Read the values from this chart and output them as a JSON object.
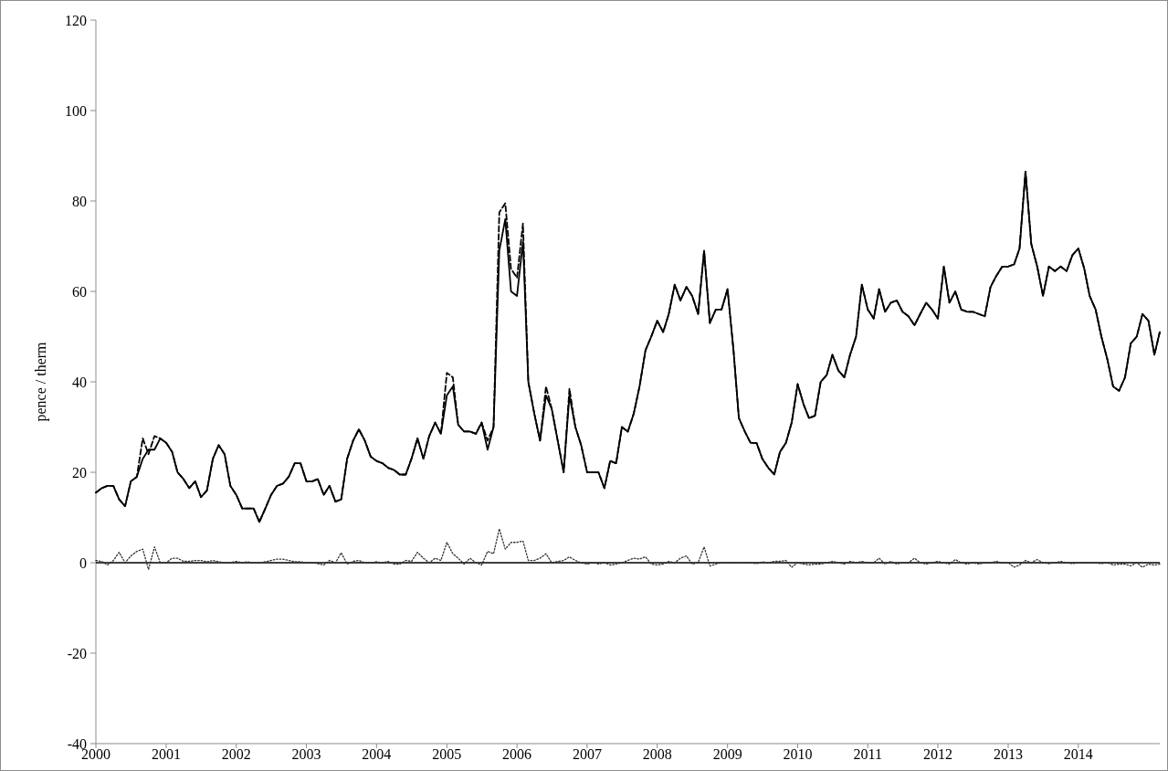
{
  "chart_data": {
    "type": "line",
    "ylabel": "pence / therm",
    "x": [
      "2000-01",
      "2000-02",
      "2000-03",
      "2000-04",
      "2000-05",
      "2000-06",
      "2000-07",
      "2000-08",
      "2000-09",
      "2000-10",
      "2000-11",
      "2000-12",
      "2001-01",
      "2001-02",
      "2001-03",
      "2001-04",
      "2001-05",
      "2001-06",
      "2001-07",
      "2001-08",
      "2001-09",
      "2001-10",
      "2001-11",
      "2001-12",
      "2002-01",
      "2002-02",
      "2002-03",
      "2002-04",
      "2002-05",
      "2002-06",
      "2002-07",
      "2002-08",
      "2002-09",
      "2002-10",
      "2002-11",
      "2002-12",
      "2003-01",
      "2003-02",
      "2003-03",
      "2003-04",
      "2003-05",
      "2003-06",
      "2003-07",
      "2003-08",
      "2003-09",
      "2003-10",
      "2003-11",
      "2003-12",
      "2004-01",
      "2004-02",
      "2004-03",
      "2004-04",
      "2004-05",
      "2004-06",
      "2004-07",
      "2004-08",
      "2004-09",
      "2004-10",
      "2004-11",
      "2004-12",
      "2005-01",
      "2005-02",
      "2005-03",
      "2005-04",
      "2005-05",
      "2005-06",
      "2005-07",
      "2005-08",
      "2005-09",
      "2005-10",
      "2005-11",
      "2005-12",
      "2006-01",
      "2006-02",
      "2006-03",
      "2006-04",
      "2006-05",
      "2006-06",
      "2006-07",
      "2006-08",
      "2006-09",
      "2006-10",
      "2006-11",
      "2006-12",
      "2007-01",
      "2007-02",
      "2007-03",
      "2007-04",
      "2007-05",
      "2007-06",
      "2007-07",
      "2007-08",
      "2007-09",
      "2007-10",
      "2007-11",
      "2007-12",
      "2008-01",
      "2008-02",
      "2008-03",
      "2008-04",
      "2008-05",
      "2008-06",
      "2008-07",
      "2008-08",
      "2008-09",
      "2008-10",
      "2008-11",
      "2008-12",
      "2009-01",
      "2009-02",
      "2009-03",
      "2009-04",
      "2009-05",
      "2009-06",
      "2009-07",
      "2009-08",
      "2009-09",
      "2009-10",
      "2009-11",
      "2009-12",
      "2010-01",
      "2010-02",
      "2010-03",
      "2010-04",
      "2010-05",
      "2010-06",
      "2010-07",
      "2010-08",
      "2010-09",
      "2010-10",
      "2010-11",
      "2010-12",
      "2011-01",
      "2011-02",
      "2011-03",
      "2011-04",
      "2011-05",
      "2011-06",
      "2011-07",
      "2011-08",
      "2011-09",
      "2011-10",
      "2011-11",
      "2011-12",
      "2012-01",
      "2012-02",
      "2012-03",
      "2012-04",
      "2012-05",
      "2012-06",
      "2012-07",
      "2012-08",
      "2012-09",
      "2012-10",
      "2012-11",
      "2012-12",
      "2013-01",
      "2013-02",
      "2013-03",
      "2013-04",
      "2013-05",
      "2013-06",
      "2013-07",
      "2013-08",
      "2013-09",
      "2013-10",
      "2013-11",
      "2013-12",
      "2014-01",
      "2014-02",
      "2014-03",
      "2014-04",
      "2014-05",
      "2014-06",
      "2014-07",
      "2014-08",
      "2014-09",
      "2014-10",
      "2014-11",
      "2014-12",
      "2015-01",
      "2015-02",
      "2015-03"
    ],
    "series": [
      {
        "color": "#000000",
        "line_style": "dashed",
        "values": [
          15.5,
          16.5,
          17,
          17,
          14,
          12.5,
          18,
          19,
          27.5,
          24,
          28,
          27.5,
          26.5,
          24.5,
          20,
          18.5,
          16.5,
          18,
          14.5,
          16,
          23,
          26,
          24,
          17,
          15,
          12,
          12,
          12,
          9,
          12,
          15,
          17,
          17.5,
          19,
          22,
          22,
          18,
          18,
          18.5,
          15,
          17,
          13.5,
          14,
          23,
          27,
          29.5,
          27,
          23.5,
          22.5,
          22,
          21,
          20.5,
          19.5,
          19.5,
          23,
          27.5,
          23,
          28,
          31,
          28.5,
          42,
          41,
          30.5,
          29,
          29,
          28.5,
          31,
          27,
          30,
          77.5,
          79.5,
          65,
          63,
          75,
          40,
          33,
          27,
          39,
          34,
          27,
          20,
          38.5,
          30,
          26,
          20,
          20,
          20,
          16.5,
          22.5,
          22,
          30,
          29,
          33,
          39,
          47,
          50,
          53.5,
          51,
          55,
          61.5,
          58,
          61,
          59,
          55,
          69,
          53,
          56,
          56,
          60.5,
          47,
          32,
          29,
          26.5,
          26.5,
          23,
          21,
          19.5,
          24.5,
          26.5,
          31,
          39.5,
          35,
          32,
          32.5,
          40,
          41.5,
          46,
          42.5,
          41,
          46,
          50,
          61.5,
          56,
          54,
          60.5,
          55.5,
          57.5,
          58,
          55.5,
          54.5,
          52.5,
          55,
          57.5,
          56,
          54,
          65.5,
          57.5,
          60,
          56,
          55.5,
          55.5,
          55,
          54.5,
          61,
          63.5,
          65.5,
          65.5,
          66,
          69.5,
          86.5,
          70.5,
          65.5,
          59,
          65.5,
          64.5,
          65.5,
          64.5,
          68,
          69.5,
          65,
          59,
          56,
          50,
          45,
          39,
          38,
          41,
          48.5,
          50,
          55,
          53.5,
          46,
          51
        ]
      },
      {
        "color": "#000000",
        "line_style": "solid",
        "values": [
          15.5,
          16.5,
          17,
          17,
          14,
          12.5,
          18,
          19,
          23,
          25,
          25,
          27.5,
          26.5,
          24.5,
          20,
          18.5,
          16.5,
          18,
          14.5,
          16,
          23,
          26,
          24,
          17,
          15,
          12,
          12,
          12,
          9,
          12,
          15,
          17,
          17.5,
          19,
          22,
          22,
          18,
          18,
          18.5,
          15,
          17,
          13.5,
          14,
          23,
          27,
          29.5,
          27,
          23.5,
          22.5,
          22,
          21,
          20.5,
          19.5,
          19.5,
          23,
          27.5,
          23,
          28,
          31,
          28.5,
          37,
          39,
          30.5,
          29,
          29,
          28.5,
          31,
          25,
          30,
          69,
          76,
          60,
          59,
          71,
          40,
          33,
          27,
          37,
          34,
          27,
          20,
          37,
          30,
          26,
          20,
          20,
          20,
          16.5,
          22.5,
          22,
          30,
          29,
          33,
          39,
          47,
          50,
          53.5,
          51,
          55,
          61.5,
          58,
          61,
          59,
          55,
          69,
          53,
          56,
          56,
          60.5,
          47,
          32,
          29,
          26.5,
          26.5,
          23,
          21,
          19.5,
          24.5,
          26.5,
          31,
          39.5,
          35,
          32,
          32.5,
          40,
          41.5,
          46,
          42.5,
          41,
          46,
          50,
          61.5,
          56,
          54,
          60.5,
          55.5,
          57.5,
          58,
          55.5,
          54.5,
          52.5,
          55,
          57.5,
          56,
          54,
          65.5,
          57.5,
          60,
          56,
          55.5,
          55.5,
          55,
          54.5,
          61,
          63.5,
          65.5,
          65.5,
          66,
          69.5,
          86.5,
          70.5,
          65.5,
          59,
          65.5,
          64.5,
          65.5,
          64.5,
          68,
          69.5,
          65,
          59,
          56,
          50,
          45,
          39,
          38,
          41,
          48.5,
          50,
          55,
          53.5,
          46,
          51
        ]
      },
      {
        "color": "#333333",
        "line_style": "dotted",
        "values": [
          0.5,
          0.3,
          -0.5,
          0.5,
          2.3,
          0,
          1.5,
          2.5,
          3,
          -1.5,
          3.5,
          0,
          0,
          1,
          1,
          0.3,
          0.3,
          0.5,
          0.5,
          0.2,
          0.5,
          0.2,
          0,
          0,
          0.3,
          0,
          0.2,
          0,
          0,
          0.2,
          0.5,
          0.8,
          0.8,
          0.5,
          0.2,
          0.2,
          0,
          0,
          -0.2,
          -0.5,
          0.5,
          0,
          2.2,
          -0.3,
          0.3,
          0.5,
          0,
          0,
          0.2,
          0,
          0.3,
          -0.3,
          -0.3,
          0.5,
          0.3,
          2.3,
          1,
          0,
          1,
          0.5,
          4.5,
          2,
          1,
          -0.3,
          1,
          0,
          -0.5,
          2.5,
          2,
          7.5,
          3,
          4.5,
          4.5,
          4.8,
          0.5,
          0.5,
          1,
          2,
          0,
          0.3,
          0.5,
          1.3,
          0.5,
          0,
          -0.3,
          0,
          -0.3,
          0,
          -0.5,
          -0.3,
          0,
          0.5,
          1,
          0.8,
          1.3,
          -0.3,
          -0.5,
          -0.3,
          0.3,
          0,
          1,
          1.5,
          -0.3,
          0,
          3.5,
          -0.7,
          -0.3,
          0,
          0,
          0,
          0,
          0,
          0,
          -0.2,
          0.2,
          0,
          0.3,
          0.3,
          0.5,
          -1,
          0,
          -0.3,
          -0.5,
          -0.3,
          -0.3,
          0,
          0.3,
          0,
          -0.3,
          0.3,
          0,
          0.3,
          0,
          0,
          1,
          -0.3,
          0.3,
          -0.3,
          0,
          0,
          1,
          0,
          -0.3,
          0,
          0.3,
          0,
          -0.3,
          0.7,
          0,
          -0.3,
          0,
          -0.3,
          0,
          0,
          0.3,
          0,
          0,
          -1,
          -0.5,
          0.5,
          0,
          0.7,
          0,
          -0.2,
          0,
          0.3,
          0,
          -0.2,
          0,
          0,
          0,
          0,
          -0.2,
          0,
          -0.5,
          -0.3,
          -0.3,
          -0.7,
          0,
          -1,
          -0.3,
          -0.5,
          -0.3
        ]
      }
    ],
    "xlim": [
      "2000-01",
      "2015-03"
    ],
    "xticks": [
      "2000",
      "2001",
      "2002",
      "2003",
      "2004",
      "2005",
      "2006",
      "2007",
      "2008",
      "2009",
      "2010",
      "2011",
      "2012",
      "2013",
      "2014"
    ],
    "ylim": [
      -40,
      120
    ],
    "yticks": [
      -40,
      -20,
      0,
      20,
      40,
      60,
      80,
      100,
      120
    ],
    "ref_lines": [
      {
        "axis": "y",
        "value": 0,
        "color": "#000000"
      }
    ],
    "grid": false,
    "marker": "none"
  }
}
